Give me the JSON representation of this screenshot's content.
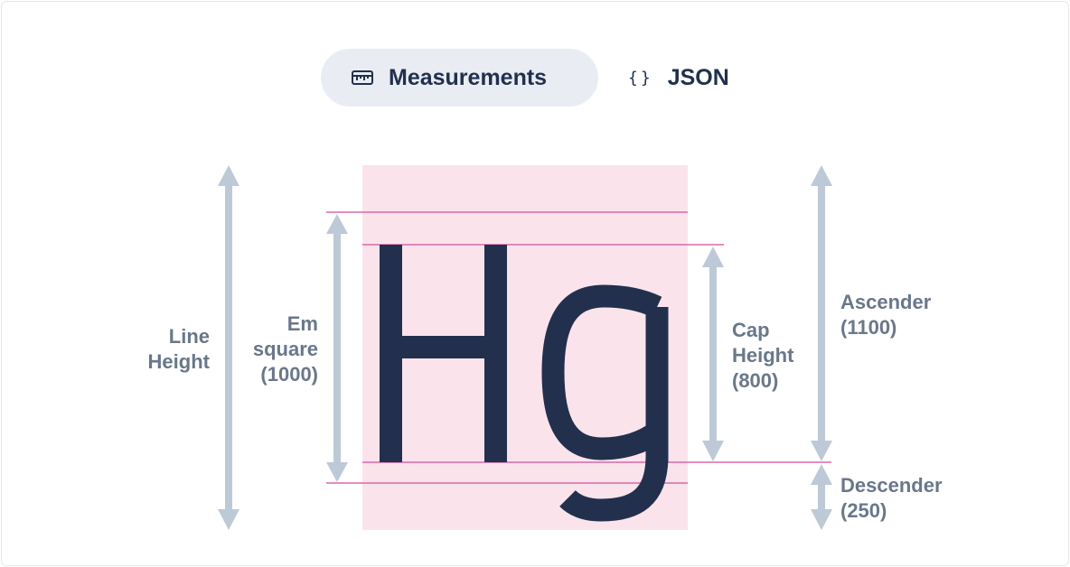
{
  "tabs": [
    {
      "label": "Measurements",
      "icon": "ruler-icon",
      "active": true
    },
    {
      "label": "JSON",
      "icon": "braces-icon",
      "active": false
    }
  ],
  "glyph_sample": "Hg",
  "metrics": {
    "line_height": {
      "line1": "Line",
      "line2": "Height"
    },
    "em_square": {
      "line1": "Em",
      "line2": "square",
      "line3": "(1000)",
      "value": 1000
    },
    "cap_height": {
      "line1": "Cap",
      "line2": "Height",
      "line3": "(800)",
      "value": 800
    },
    "ascender": {
      "line1": "Ascender",
      "line2": "(1100)",
      "value": 1100
    },
    "descender": {
      "line1": "Descender",
      "line2": "(250)",
      "value": 250
    }
  },
  "colors": {
    "glyph": "#22304d",
    "glyph_box": "#fbe3ec",
    "guide_line": "#d86aa8",
    "arrow": "#bdc9d6",
    "label": "#6a778a",
    "tab_active_bg": "#e9edf3"
  }
}
